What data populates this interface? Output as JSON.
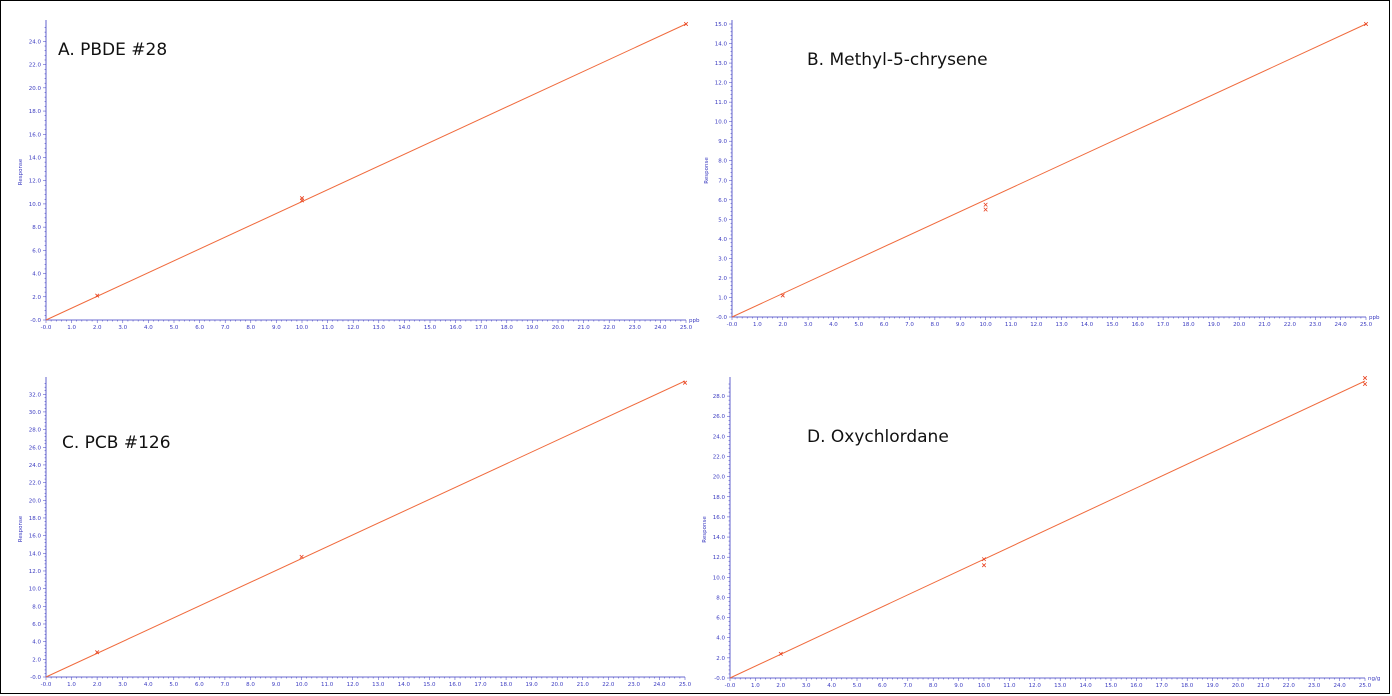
{
  "colors": {
    "axis": "#3a3ac0",
    "line": "#f06a3c",
    "marker": "#e8401e"
  },
  "chart_data": [
    {
      "type": "scatter",
      "title": "A. PBDE #28",
      "xlabel": "ppb",
      "ylabel": "Response",
      "xlim": [
        0,
        25
      ],
      "ylim": [
        0,
        25.5
      ],
      "xticks": [
        0,
        1,
        2,
        3,
        4,
        5,
        6,
        7,
        8,
        9,
        10,
        11,
        12,
        13,
        14,
        15,
        16,
        17,
        18,
        19,
        20,
        21,
        22,
        23,
        24,
        25
      ],
      "yticks": [
        0,
        2,
        4,
        6,
        8,
        10,
        12,
        14,
        16,
        18,
        20,
        22,
        24
      ],
      "fit_line": [
        [
          0,
          0
        ],
        [
          25,
          25.5
        ]
      ],
      "points": [
        [
          2,
          2.1
        ],
        [
          10,
          10.3
        ],
        [
          10,
          10.5
        ],
        [
          25,
          25.5
        ]
      ]
    },
    {
      "type": "scatter",
      "title": "B. Methyl-5-chrysene",
      "xlabel": "ppb",
      "ylabel": "Response",
      "xlim": [
        0,
        25
      ],
      "ylim": [
        0,
        15
      ],
      "xticks": [
        0,
        1,
        2,
        3,
        4,
        5,
        6,
        7,
        8,
        9,
        10,
        11,
        12,
        13,
        14,
        15,
        16,
        17,
        18,
        19,
        20,
        21,
        22,
        23,
        24,
        25
      ],
      "yticks": [
        0,
        1,
        2,
        3,
        4,
        5,
        6,
        7,
        8,
        9,
        10,
        11,
        12,
        13,
        14,
        15
      ],
      "fit_line": [
        [
          0,
          0
        ],
        [
          25,
          15
        ]
      ],
      "points": [
        [
          2,
          1.1
        ],
        [
          10,
          5.5
        ],
        [
          10,
          5.75
        ],
        [
          25,
          15
        ]
      ]
    },
    {
      "type": "scatter",
      "title": "C. PCB #126",
      "xlabel": "",
      "ylabel": "Response",
      "xlim": [
        0,
        25
      ],
      "ylim": [
        0,
        33.5
      ],
      "xticks": [
        0,
        1,
        2,
        3,
        4,
        5,
        6,
        7,
        8,
        9,
        10,
        11,
        12,
        13,
        14,
        15,
        16,
        17,
        18,
        19,
        20,
        21,
        22,
        23,
        24,
        25
      ],
      "yticks": [
        0,
        2,
        4,
        6,
        8,
        10,
        12,
        14,
        16,
        18,
        20,
        22,
        24,
        26,
        28,
        30,
        32
      ],
      "fit_line": [
        [
          0,
          0
        ],
        [
          25,
          33.5
        ]
      ],
      "points": [
        [
          2,
          2.8
        ],
        [
          10,
          13.6
        ],
        [
          25,
          33.3
        ]
      ]
    },
    {
      "type": "scatter",
      "title": "D. Oxychlordane",
      "xlabel": "ng/g",
      "ylabel": "Response",
      "xlim": [
        0,
        25
      ],
      "ylim": [
        0,
        29.5
      ],
      "xticks": [
        0,
        1,
        2,
        3,
        4,
        5,
        6,
        7,
        8,
        9,
        10,
        11,
        12,
        13,
        14,
        15,
        16,
        17,
        18,
        19,
        20,
        21,
        22,
        23,
        24,
        25
      ],
      "yticks": [
        0,
        2,
        4,
        6,
        8,
        10,
        12,
        14,
        16,
        18,
        20,
        22,
        24,
        26,
        28
      ],
      "fit_line": [
        [
          0,
          0
        ],
        [
          25,
          29.5
        ]
      ],
      "points": [
        [
          2,
          2.4
        ],
        [
          10,
          11.2
        ],
        [
          10,
          11.8
        ],
        [
          25,
          29.2
        ],
        [
          25,
          29.8
        ]
      ]
    }
  ]
}
